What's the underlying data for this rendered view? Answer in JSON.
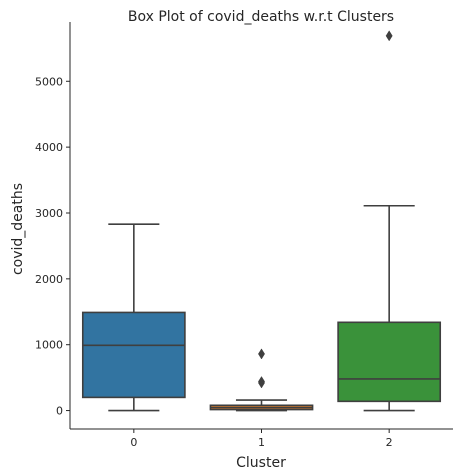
{
  "chart_data": {
    "type": "box",
    "title": "Box Plot of covid_deaths w.r.t Clusters",
    "xlabel": "Cluster",
    "ylabel": "covid_deaths",
    "ylim": [
      -280,
      5900
    ],
    "yticks": [
      0,
      1000,
      2000,
      3000,
      4000,
      5000
    ],
    "categories": [
      "0",
      "1",
      "2"
    ],
    "boxes": [
      {
        "category": "0",
        "color": "#3274a1",
        "whisker_low": 0,
        "q1": 200,
        "median": 990,
        "q3": 1490,
        "whisker_high": 2830,
        "outliers": []
      },
      {
        "category": "1",
        "color": "#e1812c",
        "whisker_low": 0,
        "q1": 15,
        "median": 45,
        "q3": 80,
        "whisker_high": 160,
        "outliers": [
          420,
          440,
          860
        ]
      },
      {
        "category": "2",
        "color": "#3a923a",
        "whisker_low": 0,
        "q1": 140,
        "median": 480,
        "q3": 1340,
        "whisker_high": 3110,
        "outliers": [
          5690
        ]
      }
    ],
    "grid": false,
    "spines": [
      "left",
      "bottom"
    ]
  }
}
